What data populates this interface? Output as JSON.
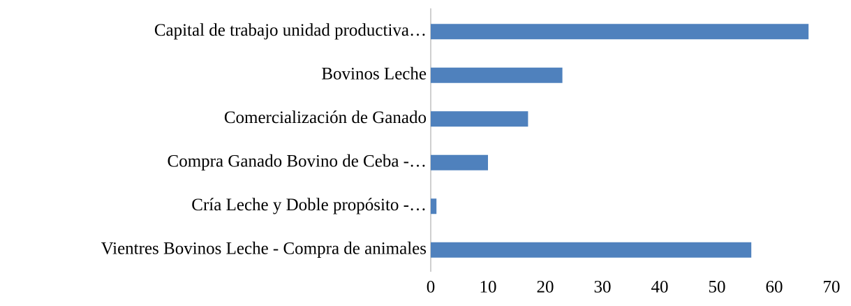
{
  "chart_data": {
    "type": "barh",
    "categories": [
      "Capital de trabajo unidad productiva…",
      "Bovinos Leche",
      "Comercialización de Ganado",
      "Compra Ganado Bovino de Ceba  -…",
      "Cría Leche y Doble propósito  -…",
      "Vientres Bovinos Leche  - Compra de animales"
    ],
    "values": [
      66,
      23,
      17,
      10,
      1,
      56
    ],
    "color": "#4f81bd",
    "xlim": [
      0,
      70
    ],
    "xticks": [
      0,
      10,
      20,
      30,
      40,
      50,
      60,
      70
    ],
    "grid": false
  }
}
